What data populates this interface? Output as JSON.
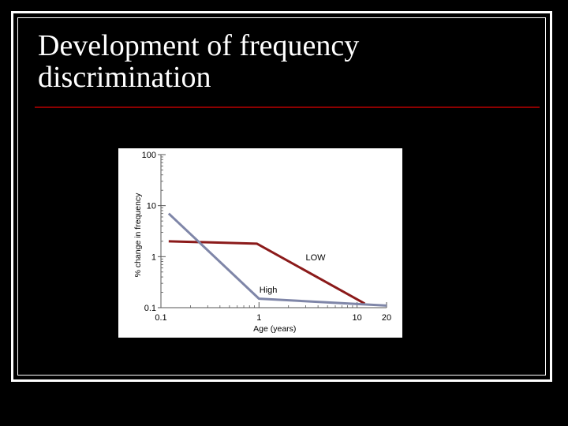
{
  "slide": {
    "title": "Development of frequency discrimination"
  },
  "colors": {
    "background": "#000000",
    "title_rule": "#8b0000",
    "plot_area": "#ffffff",
    "series_low": "#8b1a1a",
    "series_high": "#7f86a8"
  },
  "chart_data": {
    "type": "line",
    "xlabel": "Age (years)",
    "ylabel": "% change in frequency",
    "x_scale": "log",
    "y_scale": "log",
    "xlim": [
      0.1,
      20
    ],
    "ylim": [
      0.1,
      100
    ],
    "x_ticks": [
      0.1,
      1,
      10,
      20
    ],
    "x_tick_labels": [
      "0.1",
      "1",
      "10",
      "20"
    ],
    "y_ticks": [
      0.1,
      1,
      10,
      100
    ],
    "y_tick_labels": [
      "0.1",
      "1",
      "10",
      "100"
    ],
    "grid": false,
    "series": [
      {
        "name": "LOW",
        "color": "#8b1a1a",
        "x": [
          0.12,
          0.95,
          12
        ],
        "y": [
          2,
          1.8,
          0.12
        ]
      },
      {
        "name": "High",
        "color": "#7f86a8",
        "x": [
          0.12,
          1,
          20
        ],
        "y": [
          7,
          0.15,
          0.11
        ]
      }
    ]
  }
}
